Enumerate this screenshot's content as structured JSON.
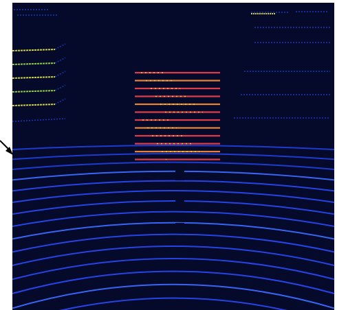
{
  "image": {
    "kind": "lidar-point-cloud-scan",
    "colors": {
      "page": "#ffffff",
      "panel": "#050a2a",
      "far_ring": "#1f3fd8",
      "near_ring": "#2848f0",
      "bright_ring": "#3a6cff",
      "green_return": "#9be44a",
      "yellow_return": "#e8e84a",
      "red_object": "#e8404a",
      "orange_object": "#f08a3a",
      "arrow": "#000000"
    }
  }
}
